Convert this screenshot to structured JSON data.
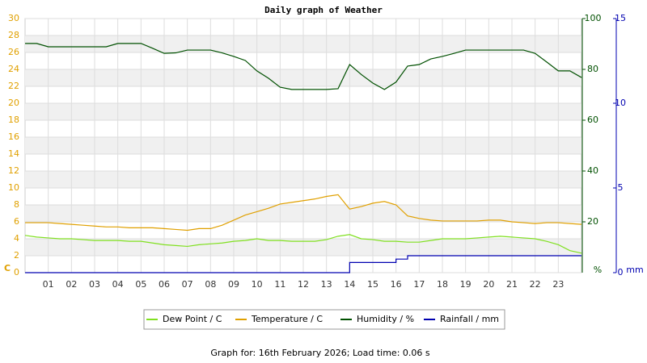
{
  "chart_data": {
    "type": "line",
    "title": "Daily graph of Weather",
    "footer": "Graph for: 16th February 2026; Load time: 0.06 s",
    "x": [
      0,
      0.5,
      1,
      1.5,
      2,
      2.5,
      3,
      3.5,
      4,
      4.5,
      5,
      5.5,
      6,
      6.5,
      7,
      7.5,
      8,
      8.5,
      9,
      9.5,
      10,
      10.5,
      11,
      11.5,
      12,
      12.5,
      13,
      13.5,
      14,
      14.5,
      15,
      15.5,
      16,
      16.5,
      17,
      17.5,
      18,
      18.5,
      19,
      19.5,
      20,
      20.5,
      21,
      21.5,
      22,
      22.5,
      23,
      23.5,
      24
    ],
    "xlim": [
      0,
      24
    ],
    "xticks": [
      {
        "value": 1,
        "label": "01"
      },
      {
        "value": 2,
        "label": "02"
      },
      {
        "value": 3,
        "label": "03"
      },
      {
        "value": 4,
        "label": "04"
      },
      {
        "value": 5,
        "label": "05"
      },
      {
        "value": 6,
        "label": "06"
      },
      {
        "value": 7,
        "label": "07"
      },
      {
        "value": 8,
        "label": "08"
      },
      {
        "value": 9,
        "label": "09"
      },
      10,
      11,
      12,
      13,
      14,
      15,
      16,
      17,
      18,
      19,
      20,
      21,
      22,
      23
    ],
    "ylim": [
      0,
      30
    ],
    "yticks": [
      0,
      2,
      4,
      6,
      8,
      10,
      12,
      14,
      16,
      18,
      20,
      22,
      24,
      26,
      28,
      30
    ],
    "y_unit": "C",
    "y_color": "#e0a000",
    "y2lim": [
      0,
      100
    ],
    "y2ticks": [
      20,
      40,
      60,
      80,
      100
    ],
    "y2_unit": "%",
    "y2_color": "#005000",
    "y3lim": [
      0,
      15
    ],
    "y3ticks": [
      0,
      5,
      10,
      15
    ],
    "y3_unit": "mm",
    "y3_color": "#0000b0",
    "grid": true,
    "series": [
      {
        "name": "Dew Point / C",
        "color": "#80e020",
        "values": [
          4.4,
          4.2,
          4.1,
          4.0,
          4.0,
          3.9,
          3.8,
          3.8,
          3.8,
          3.7,
          3.7,
          3.5,
          3.3,
          3.2,
          3.1,
          3.3,
          3.4,
          3.5,
          3.7,
          3.8,
          4.0,
          3.8,
          3.8,
          3.7,
          3.7,
          3.7,
          3.9,
          4.3,
          4.5,
          4.0,
          3.9,
          3.7,
          3.7,
          3.6,
          3.6,
          3.8,
          4.0,
          4.0,
          4.0,
          4.1,
          4.2,
          4.3,
          4.2,
          4.1,
          4.0,
          3.7,
          3.3,
          2.6,
          2.3
        ]
      },
      {
        "name": "Temperature / C",
        "color": "#e0a000",
        "values": [
          5.9,
          5.9,
          5.9,
          5.8,
          5.7,
          5.6,
          5.5,
          5.4,
          5.4,
          5.3,
          5.3,
          5.3,
          5.2,
          5.1,
          5.0,
          5.2,
          5.2,
          5.6,
          6.2,
          6.8,
          7.2,
          7.6,
          8.1,
          8.3,
          8.5,
          8.7,
          9.0,
          9.2,
          7.5,
          7.8,
          8.2,
          8.4,
          8.0,
          6.7,
          6.4,
          6.2,
          6.1,
          6.1,
          6.1,
          6.1,
          6.2,
          6.2,
          6.0,
          5.9,
          5.8,
          5.9,
          5.9,
          5.8,
          5.7
        ]
      },
      {
        "name": "Humidity / %",
        "color": "#005000",
        "axis": "y2",
        "values": [
          90.2,
          90.2,
          88.9,
          88.9,
          88.9,
          88.9,
          88.9,
          88.9,
          90.2,
          90.2,
          90.2,
          88.3,
          86.3,
          86.5,
          87.6,
          87.6,
          87.6,
          86.5,
          85.1,
          83.5,
          79.4,
          76.5,
          73,
          72.1,
          72.1,
          72.1,
          72.1,
          72.4,
          81.9,
          78,
          74.6,
          72.1,
          75,
          81.3,
          81.9,
          84.1,
          85.1,
          86.3,
          87.6,
          87.6,
          87.6,
          87.6,
          87.6,
          87.6,
          86.3,
          82.9,
          79.4,
          79.4,
          76.8
        ]
      },
      {
        "name": "Rainfall / mm",
        "color": "#0000b0",
        "axis": "y3",
        "step": true,
        "values": [
          0,
          0,
          0,
          0,
          0,
          0,
          0,
          0,
          0,
          0,
          0,
          0,
          0,
          0,
          0,
          0,
          0,
          0,
          0,
          0,
          0,
          0,
          0,
          0,
          0,
          0,
          0,
          0,
          0.6,
          0.6,
          0.6,
          0.6,
          0.8,
          1.0,
          1.0,
          1.0,
          1.0,
          1.0,
          1.0,
          1.0,
          1.0,
          1.0,
          1.0,
          1.0,
          1.0,
          1.0,
          1.0,
          1.0,
          1.0
        ]
      }
    ]
  }
}
